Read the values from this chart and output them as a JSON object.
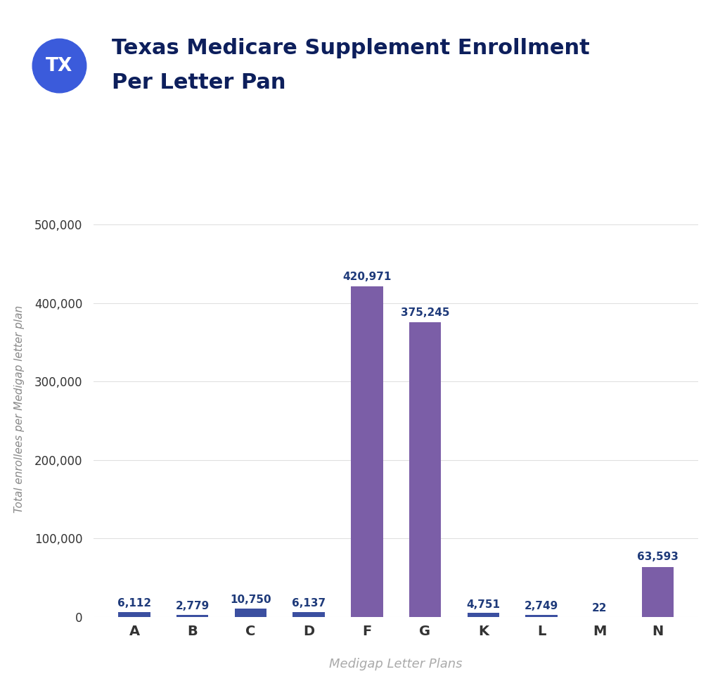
{
  "title_line1": "Texas Medicare Supplement Enrollment",
  "title_line2": "Per Letter Pan",
  "xlabel": "Medigap Letter Plans",
  "ylabel": "Total enrollees per Medigap letter plan",
  "categories": [
    "A",
    "B",
    "C",
    "D",
    "F",
    "G",
    "K",
    "L",
    "M",
    "N"
  ],
  "values": [
    6112,
    2779,
    10750,
    6137,
    420971,
    375245,
    4751,
    2749,
    22,
    63593
  ],
  "bar_color_small": "#3b4fa0",
  "bar_color_large": "#7b5ea7",
  "large_threshold": 50000,
  "ylim": [
    0,
    530000
  ],
  "yticks": [
    0,
    100000,
    200000,
    300000,
    400000,
    500000
  ],
  "value_labels": [
    "6,112",
    "2,779",
    "10,750",
    "6,137",
    "420,971",
    "375,245",
    "4,751",
    "2,749",
    "22",
    "63,593"
  ],
  "background_color": "#ffffff",
  "grid_color": "#e0e0e0",
  "bar_label_color_small": "#1e3a7a",
  "bar_label_color_large": "#1e3a7a",
  "title_color": "#0d1f5c",
  "xlabel_color": "#aaaaaa",
  "ylabel_color": "#888888",
  "tick_color": "#333333",
  "circle_color": "#3b5bdb",
  "circle_text": "TX",
  "title_fontsize": 22,
  "bar_label_fontsize": 11,
  "xlabel_fontsize": 13,
  "ylabel_fontsize": 11,
  "xtick_fontsize": 14,
  "ytick_fontsize": 12
}
